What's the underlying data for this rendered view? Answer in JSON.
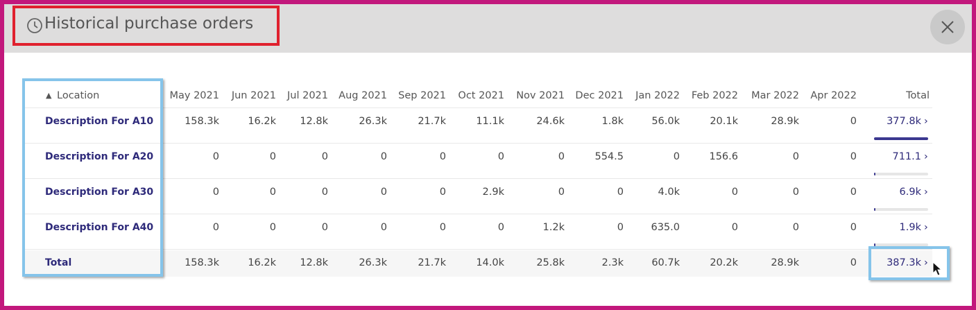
{
  "header": {
    "title": "Historical purchase orders"
  },
  "table": {
    "columns": [
      "Location",
      "May 2021",
      "Jun 2021",
      "Jul 2021",
      "Aug 2021",
      "Sep 2021",
      "Oct 2021",
      "Nov 2021",
      "Dec 2021",
      "Jan 2022",
      "Feb 2022",
      "Mar 2022",
      "Apr 2022",
      "Total"
    ],
    "rows": [
      [
        "Description For A10",
        "158.3k",
        "16.2k",
        "12.8k",
        "26.3k",
        "21.7k",
        "11.1k",
        "24.6k",
        "1.8k",
        "56.0k",
        "20.1k",
        "28.9k",
        "0",
        "377.8k"
      ],
      [
        "Description For A20",
        "0",
        "0",
        "0",
        "0",
        "0",
        "0",
        "0",
        "554.5",
        "0",
        "156.6",
        "0",
        "0",
        "711.1"
      ],
      [
        "Description For A30",
        "0",
        "0",
        "0",
        "0",
        "0",
        "2.9k",
        "0",
        "0",
        "4.0k",
        "0",
        "0",
        "0",
        "6.9k"
      ],
      [
        "Description For A40",
        "0",
        "0",
        "0",
        "0",
        "0",
        "0",
        "1.2k",
        "0",
        "635.0",
        "0",
        "0",
        "0",
        "1.9k"
      ],
      [
        "Total",
        "158.3k",
        "16.2k",
        "12.8k",
        "26.3k",
        "21.7k",
        "14.0k",
        "25.8k",
        "2.3k",
        "60.7k",
        "20.2k",
        "28.9k",
        "0",
        "387.3k"
      ]
    ]
  }
}
